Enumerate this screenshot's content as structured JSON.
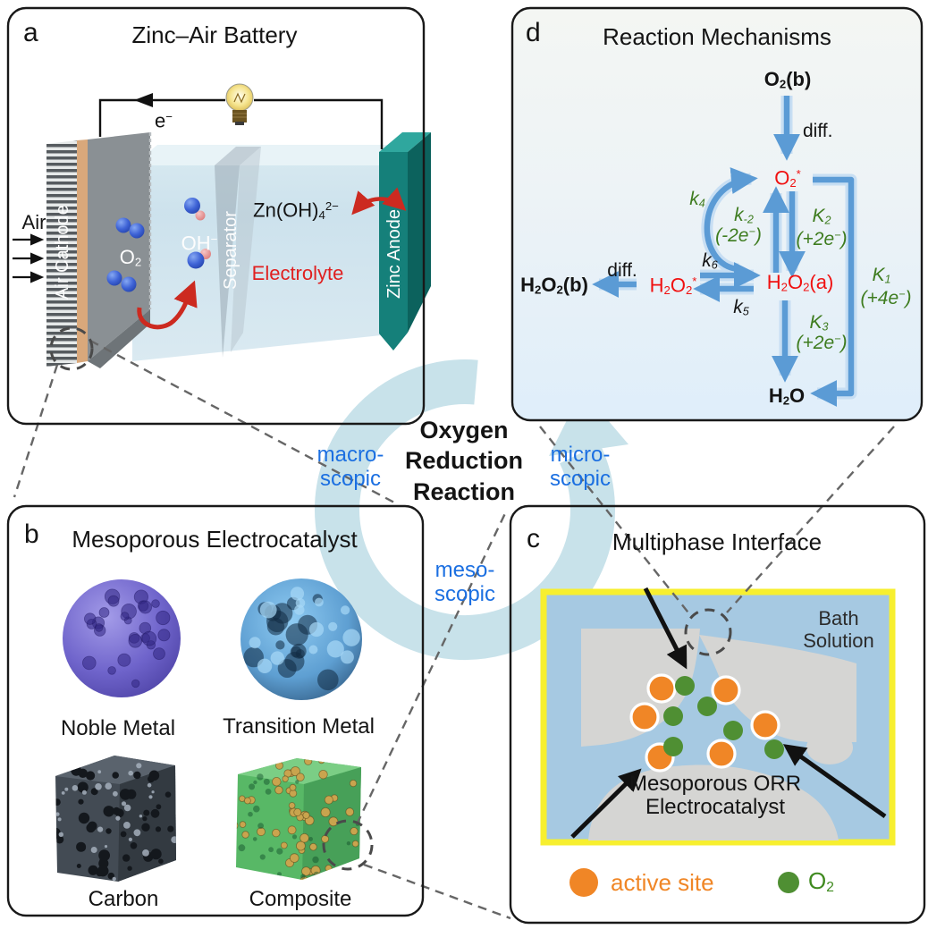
{
  "colors": {
    "arrow_blue": "#5B9BD5",
    "arrow_blue_halo": "#C7DEF3",
    "rate_green": "#3E7C1F",
    "species_red": "#F01010",
    "label_blue": "#1B6FE1",
    "active_site_orange": "#F08626",
    "o2_green": "#4F8F33",
    "electrolyte_red": "#E02020",
    "ring_teal": "#C8E2EA",
    "interface_yellow": "#F7EF2F",
    "bath_blue": "#A6C9E2",
    "catalyst_gray": "#D5D5D3",
    "zinc_teal": "#15807A"
  },
  "panel_a": {
    "letter": "a",
    "title": "Zinc–Air Battery",
    "air": "Air",
    "electron": "e^−^",
    "air_cathode": "Air Cathode",
    "o2": "O~2~",
    "oh": "OH^−^",
    "separator": "Separator",
    "zincate": "Zn(OH)~4~^2−^",
    "electrolyte": "Electrolyte",
    "zinc_anode": "Zinc Anode"
  },
  "panel_b": {
    "letter": "b",
    "title": "Mesoporous Electrocatalyst",
    "labels": {
      "noble": "Noble Metal",
      "transition": "Transition Metal",
      "carbon": "Carbon",
      "composite": "Composite"
    }
  },
  "panel_c": {
    "letter": "c",
    "title": "Multiphase Interface",
    "bath_1": "Bath",
    "bath_2": "Solution",
    "catalyst_1": "Mesoporous ORR",
    "catalyst_2": "Electrocatalyst",
    "legend": {
      "active_site": "active site",
      "o2": "O~2~"
    }
  },
  "panel_d": {
    "letter": "d",
    "title": "Reaction Mechanisms",
    "species": {
      "o2_bulk": "O~2~(b)",
      "o2_ads": "O~2~^*^",
      "h2o2_bulk": "H~2~O~2~(b)",
      "h2o2_ads": "H~2~O~2~^*^",
      "h2o2_a": "H~2~O~2~(a)",
      "h2o": "H~2~O"
    },
    "labels": {
      "diff_top": "diff.",
      "diff_left": "diff.",
      "k4": "k~4~",
      "k_m2": "k~-2~",
      "k_m2_e": "(-2e^−^)",
      "K2": "K~2~",
      "K2_e": "(+2e^−^)",
      "k6": "k~6~",
      "k5": "k~5~",
      "K1": "K~1~",
      "K1_e": "(+4e^−^)",
      "K3": "K~3~",
      "K3_e": "(+2e^−^)"
    }
  },
  "center": {
    "orr_1": "Oxygen",
    "orr_2": "Reduction",
    "orr_3": "Reaction",
    "macro_1": "macro-",
    "macro_2": "scopic",
    "micro_1": "micro-",
    "micro_2": "scopic",
    "meso_1": "meso-",
    "meso_2": "scopic"
  }
}
